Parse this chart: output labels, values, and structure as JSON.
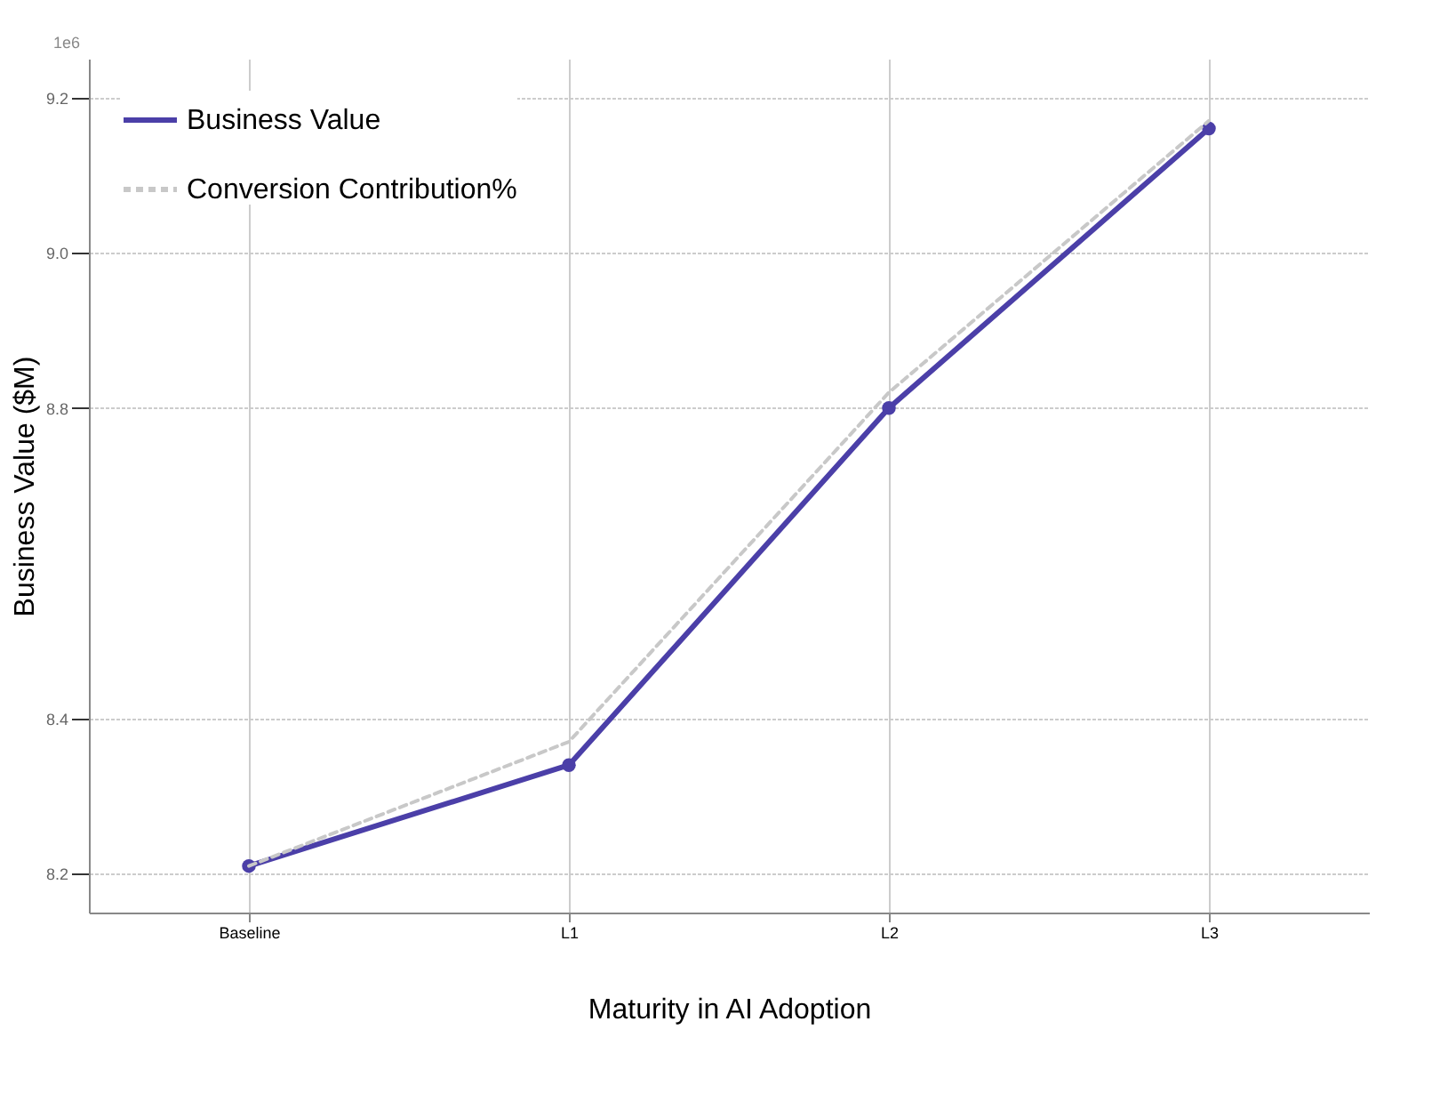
{
  "chart_data": {
    "type": "line",
    "xlabel": "Maturity in AI Adoption",
    "ylabel": "Business Value ($M)",
    "categories": [
      "Baseline",
      "L1",
      "L2",
      "L3"
    ],
    "series": [
      {
        "name": "Business Value",
        "color": "#4b3fa8",
        "values": [
          8.21,
          8.34,
          8.8,
          9.16
        ],
        "marker": "circle",
        "line_style": "solid"
      },
      {
        "name": "Conversion Contribution%",
        "color": "#c8c8c8",
        "values": [
          8.21,
          8.37,
          8.82,
          9.17
        ],
        "marker": "none",
        "line_style": "dashed"
      }
    ],
    "ylim": [
      8.15,
      9.25
    ],
    "yticks": [
      8.2,
      8.4,
      8.8,
      {
        "value": 9,
        "label": "9.0"
      },
      9.2
    ],
    "annotations": [
      "1e6"
    ],
    "grid": true,
    "legend": "top left"
  }
}
